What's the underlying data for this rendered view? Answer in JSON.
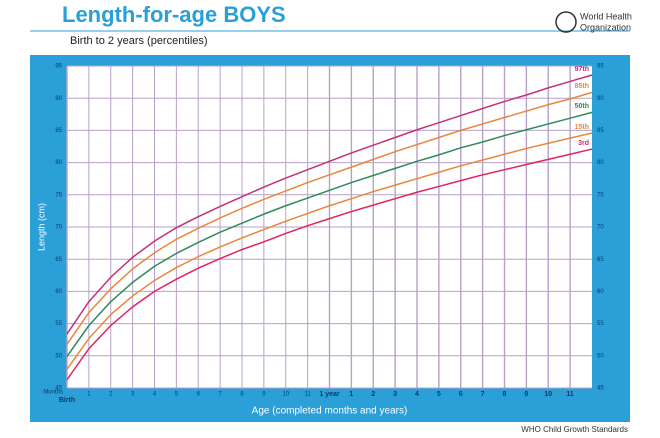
{
  "header": {
    "title": "Length-for-age BOYS",
    "subtitle": "Birth to 2 years (percentiles)",
    "org": [
      "World Health",
      "Organization"
    ]
  },
  "footer": "WHO Child Growth Standards",
  "chart_data": {
    "type": "line",
    "ylabel": "Length (cm)",
    "xlabel": "Age (completed months and years)",
    "xunit": "Months",
    "x": [
      0,
      1,
      2,
      3,
      4,
      5,
      6,
      7,
      8,
      9,
      10,
      11,
      12,
      13,
      14,
      15,
      16,
      17,
      18,
      19,
      20,
      21,
      22,
      23,
      24
    ],
    "xlim": [
      0,
      24
    ],
    "xticks": [
      {
        "value": 0,
        "label": "Birth"
      },
      1,
      2,
      3,
      4,
      5,
      6,
      7,
      8,
      9,
      10,
      11,
      {
        "value": 12,
        "label": "1 year"
      },
      {
        "value": 13,
        "label": "1"
      },
      {
        "value": 14,
        "label": "2"
      },
      {
        "value": 15,
        "label": "3"
      },
      {
        "value": 16,
        "label": "4"
      },
      {
        "value": 17,
        "label": "5"
      },
      {
        "value": 18,
        "label": "6"
      },
      {
        "value": 19,
        "label": "7"
      },
      {
        "value": 20,
        "label": "8"
      },
      {
        "value": 21,
        "label": "9"
      },
      {
        "value": 22,
        "label": "10"
      },
      {
        "value": 23,
        "label": "11"
      }
    ],
    "ylim": [
      45,
      95
    ],
    "yticks": [
      45,
      50,
      55,
      60,
      65,
      70,
      75,
      80,
      85,
      90,
      95
    ],
    "grid": true,
    "series": [
      {
        "name": "97th",
        "color": "#c2307a",
        "values": [
          53.4,
          58.4,
          62.2,
          65.3,
          67.8,
          69.9,
          71.6,
          73.2,
          74.7,
          76.2,
          77.6,
          78.9,
          80.2,
          81.5,
          82.7,
          83.9,
          85.1,
          86.2,
          87.3,
          88.4,
          89.5,
          90.5,
          91.6,
          92.6,
          93.6
        ]
      },
      {
        "name": "85th",
        "color": "#e8873a",
        "values": [
          51.8,
          56.7,
          60.4,
          63.5,
          66.0,
          68.1,
          69.8,
          71.4,
          72.9,
          74.3,
          75.6,
          76.9,
          78.1,
          79.3,
          80.5,
          81.7,
          82.8,
          83.9,
          85.0,
          86.0,
          87.0,
          88.0,
          89.0,
          89.9,
          90.9
        ]
      },
      {
        "name": "50th",
        "color": "#2e8b5a",
        "values": [
          49.9,
          54.7,
          58.4,
          61.4,
          63.9,
          65.9,
          67.6,
          69.2,
          70.6,
          72.0,
          73.3,
          74.5,
          75.7,
          76.9,
          78.0,
          79.1,
          80.2,
          81.2,
          82.3,
          83.2,
          84.2,
          85.1,
          86.0,
          86.9,
          87.8
        ]
      },
      {
        "name": "15th",
        "color": "#e8873a",
        "values": [
          47.9,
          52.7,
          56.4,
          59.3,
          61.7,
          63.7,
          65.4,
          66.9,
          68.3,
          69.6,
          70.9,
          72.1,
          73.3,
          74.4,
          75.5,
          76.5,
          77.5,
          78.5,
          79.5,
          80.4,
          81.3,
          82.2,
          83.0,
          83.8,
          84.6
        ]
      },
      {
        "name": "3rd",
        "color": "#e0245e",
        "values": [
          46.3,
          51.1,
          54.7,
          57.6,
          60.0,
          61.9,
          63.6,
          65.1,
          66.5,
          67.7,
          69.0,
          70.2,
          71.3,
          72.4,
          73.4,
          74.4,
          75.4,
          76.3,
          77.2,
          78.1,
          78.9,
          79.7,
          80.5,
          81.3,
          82.1
        ]
      }
    ]
  }
}
